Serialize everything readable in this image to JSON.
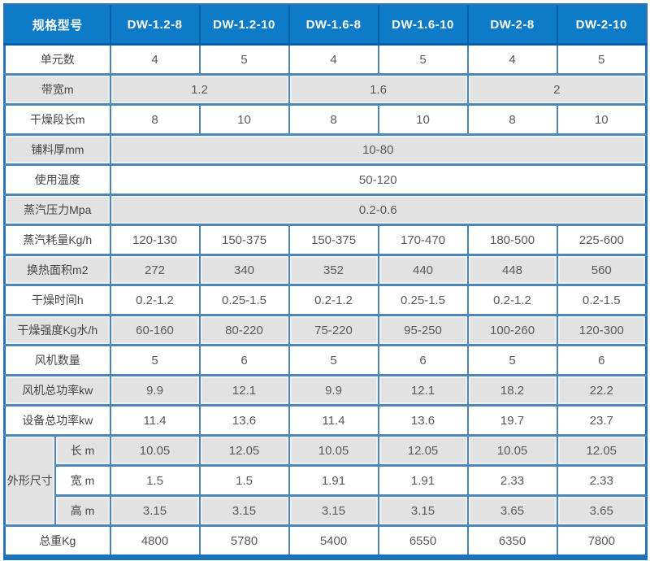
{
  "colors": {
    "header_bg": "#0d7bc7",
    "header_divider": "#0a5fa6",
    "inner_border": "#4d87b8",
    "outer_border": "#2b73b4",
    "bottom_bar": "#1d73ba",
    "gray_cell": "#e2e2e2",
    "white_cell": "#ffffff"
  },
  "table": {
    "corner_label": "规格型号",
    "models": [
      "DW-1.2-8",
      "DW-1.2-10",
      "DW-1.6-8",
      "DW-1.6-10",
      "DW-2-8",
      "DW-2-10"
    ],
    "rows": [
      {
        "label": "单元数",
        "shade": "white",
        "cells": [
          {
            "v": "4"
          },
          {
            "v": "5"
          },
          {
            "v": "4"
          },
          {
            "v": "5"
          },
          {
            "v": "4"
          },
          {
            "v": "5"
          }
        ]
      },
      {
        "label": "带宽m",
        "shade": "gray",
        "cells": [
          {
            "v": "1.2",
            "span": 2
          },
          {
            "v": "1.6",
            "span": 2
          },
          {
            "v": "2",
            "span": 2
          }
        ]
      },
      {
        "label": "干燥段长m",
        "shade": "white",
        "cells": [
          {
            "v": "8"
          },
          {
            "v": "10"
          },
          {
            "v": "8"
          },
          {
            "v": "10"
          },
          {
            "v": "8"
          },
          {
            "v": "10"
          }
        ]
      },
      {
        "label": "铺料厚mm",
        "shade": "gray",
        "cells": [
          {
            "v": "10-80",
            "span": 6
          }
        ]
      },
      {
        "label": "使用温度",
        "shade": "white",
        "cells": [
          {
            "v": "50-120",
            "span": 6
          }
        ]
      },
      {
        "label": "蒸汽压力Mpa",
        "shade": "gray",
        "cells": [
          {
            "v": "0.2-0.6",
            "span": 6
          }
        ]
      },
      {
        "label": "蒸汽耗量Kg/h",
        "shade": "white",
        "cells": [
          {
            "v": "120-130"
          },
          {
            "v": "150-375"
          },
          {
            "v": "150-375"
          },
          {
            "v": "170-470"
          },
          {
            "v": "180-500"
          },
          {
            "v": "225-600"
          }
        ]
      },
      {
        "label": "换热面积m2",
        "shade": "gray",
        "cells": [
          {
            "v": "272"
          },
          {
            "v": "340"
          },
          {
            "v": "352"
          },
          {
            "v": "440"
          },
          {
            "v": "448"
          },
          {
            "v": "560"
          }
        ]
      },
      {
        "label": "干燥时间h",
        "shade": "white",
        "cells": [
          {
            "v": "0.2-1.2"
          },
          {
            "v": "0.25-1.5"
          },
          {
            "v": "0.2-1.2"
          },
          {
            "v": "0.25-1.5"
          },
          {
            "v": "0.2-1.2"
          },
          {
            "v": "0.2-1.5"
          }
        ]
      },
      {
        "label": "干燥强度Kg水/h",
        "shade": "gray",
        "cells": [
          {
            "v": "60-160"
          },
          {
            "v": "80-220"
          },
          {
            "v": "75-220"
          },
          {
            "v": "95-250"
          },
          {
            "v": "100-260"
          },
          {
            "v": "120-300"
          }
        ]
      },
      {
        "label": "风机数量",
        "shade": "white",
        "cells": [
          {
            "v": "5"
          },
          {
            "v": "6"
          },
          {
            "v": "5"
          },
          {
            "v": "6"
          },
          {
            "v": "5"
          },
          {
            "v": "6"
          }
        ]
      },
      {
        "label": "风机总功率kw",
        "shade": "gray",
        "cells": [
          {
            "v": "9.9"
          },
          {
            "v": "12.1"
          },
          {
            "v": "9.9"
          },
          {
            "v": "12.1"
          },
          {
            "v": "18.2"
          },
          {
            "v": "22.2"
          }
        ]
      },
      {
        "label": "设备总功率kw",
        "shade": "white",
        "cells": [
          {
            "v": "11.4"
          },
          {
            "v": "13.6"
          },
          {
            "v": "11.4"
          },
          {
            "v": "13.6"
          },
          {
            "v": "19.7"
          },
          {
            "v": "23.7"
          }
        ]
      },
      {
        "label": "长 m",
        "sub": true,
        "group": {
          "label": "外形尺寸",
          "span": 3
        },
        "shade": "gray",
        "cells": [
          {
            "v": "10.05"
          },
          {
            "v": "12.05"
          },
          {
            "v": "10.05"
          },
          {
            "v": "12.05"
          },
          {
            "v": "10.05"
          },
          {
            "v": "12.05"
          }
        ]
      },
      {
        "label": "宽 m",
        "sub": true,
        "shade": "white",
        "cells": [
          {
            "v": "1.5"
          },
          {
            "v": "1.5"
          },
          {
            "v": "1.91"
          },
          {
            "v": "1.91"
          },
          {
            "v": "2.33"
          },
          {
            "v": "2.33"
          }
        ]
      },
      {
        "label": "高 m",
        "sub": true,
        "shade": "gray",
        "cells": [
          {
            "v": "3.15"
          },
          {
            "v": "3.15"
          },
          {
            "v": "3.15"
          },
          {
            "v": "3.15"
          },
          {
            "v": "3.65"
          },
          {
            "v": "3.65"
          }
        ]
      },
      {
        "label": "总重Kg",
        "shade": "white",
        "cells": [
          {
            "v": "4800"
          },
          {
            "v": "5780"
          },
          {
            "v": "5400"
          },
          {
            "v": "6550"
          },
          {
            "v": "6350"
          },
          {
            "v": "7800"
          }
        ]
      }
    ]
  }
}
